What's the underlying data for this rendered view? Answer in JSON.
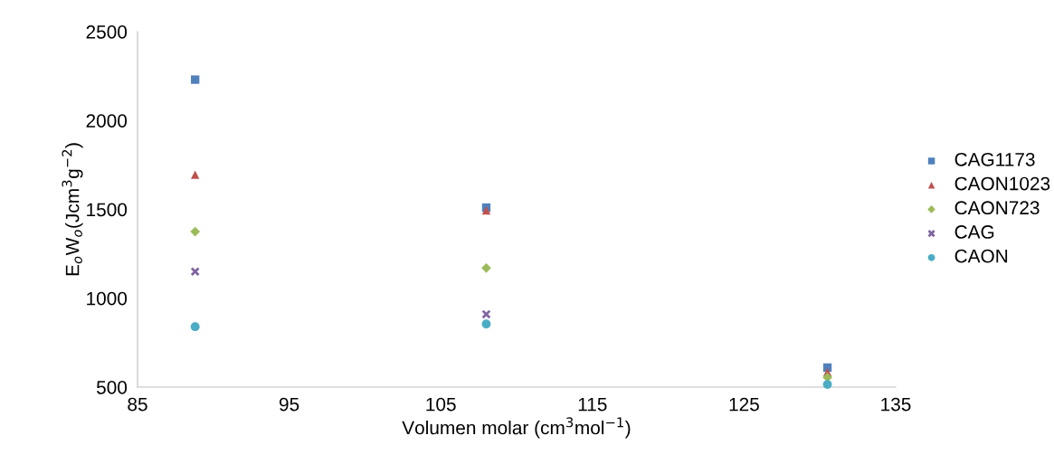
{
  "chart_data": {
    "type": "scatter",
    "xlabel": "Volumen molar (cm$^{3}$mol$^{−1}$)",
    "ylabel": "E$_{o}$W$_{o}$(Jcm$^{3}$g$^{−2}$)",
    "xlim": [
      85,
      135
    ],
    "xticks": [
      85,
      95,
      105,
      115,
      125,
      135
    ],
    "ylim": [
      500,
      2500
    ],
    "yticks": [
      500,
      1000,
      1500,
      2000,
      2500
    ],
    "grid": false,
    "legend": "right",
    "series": [
      {
        "name": "CAG1173",
        "color": "#4f81bd",
        "marker": "square",
        "x": [
          88.8,
          108.0,
          130.5
        ],
        "values": [
          2230,
          1510,
          610
        ]
      },
      {
        "name": "CAON1023",
        "color": "#c0504d",
        "marker": "triangle",
        "x": [
          88.8,
          108.0,
          130.5
        ],
        "values": [
          1695,
          1495,
          585
        ]
      },
      {
        "name": "CAON723",
        "color": "#9bbb59",
        "marker": "diamond",
        "x": [
          88.8,
          108.0,
          130.5
        ],
        "values": [
          1375,
          1170,
          555
        ]
      },
      {
        "name": "CAG",
        "color": "#8064a2",
        "marker": "cross",
        "x": [
          88.8,
          108.0
        ],
        "values": [
          1150,
          910
        ]
      },
      {
        "name": "CAON",
        "color": "#4bacc6",
        "marker": "circle",
        "x": [
          88.8,
          108.0,
          130.5
        ],
        "values": [
          840,
          855,
          515
        ]
      }
    ]
  }
}
